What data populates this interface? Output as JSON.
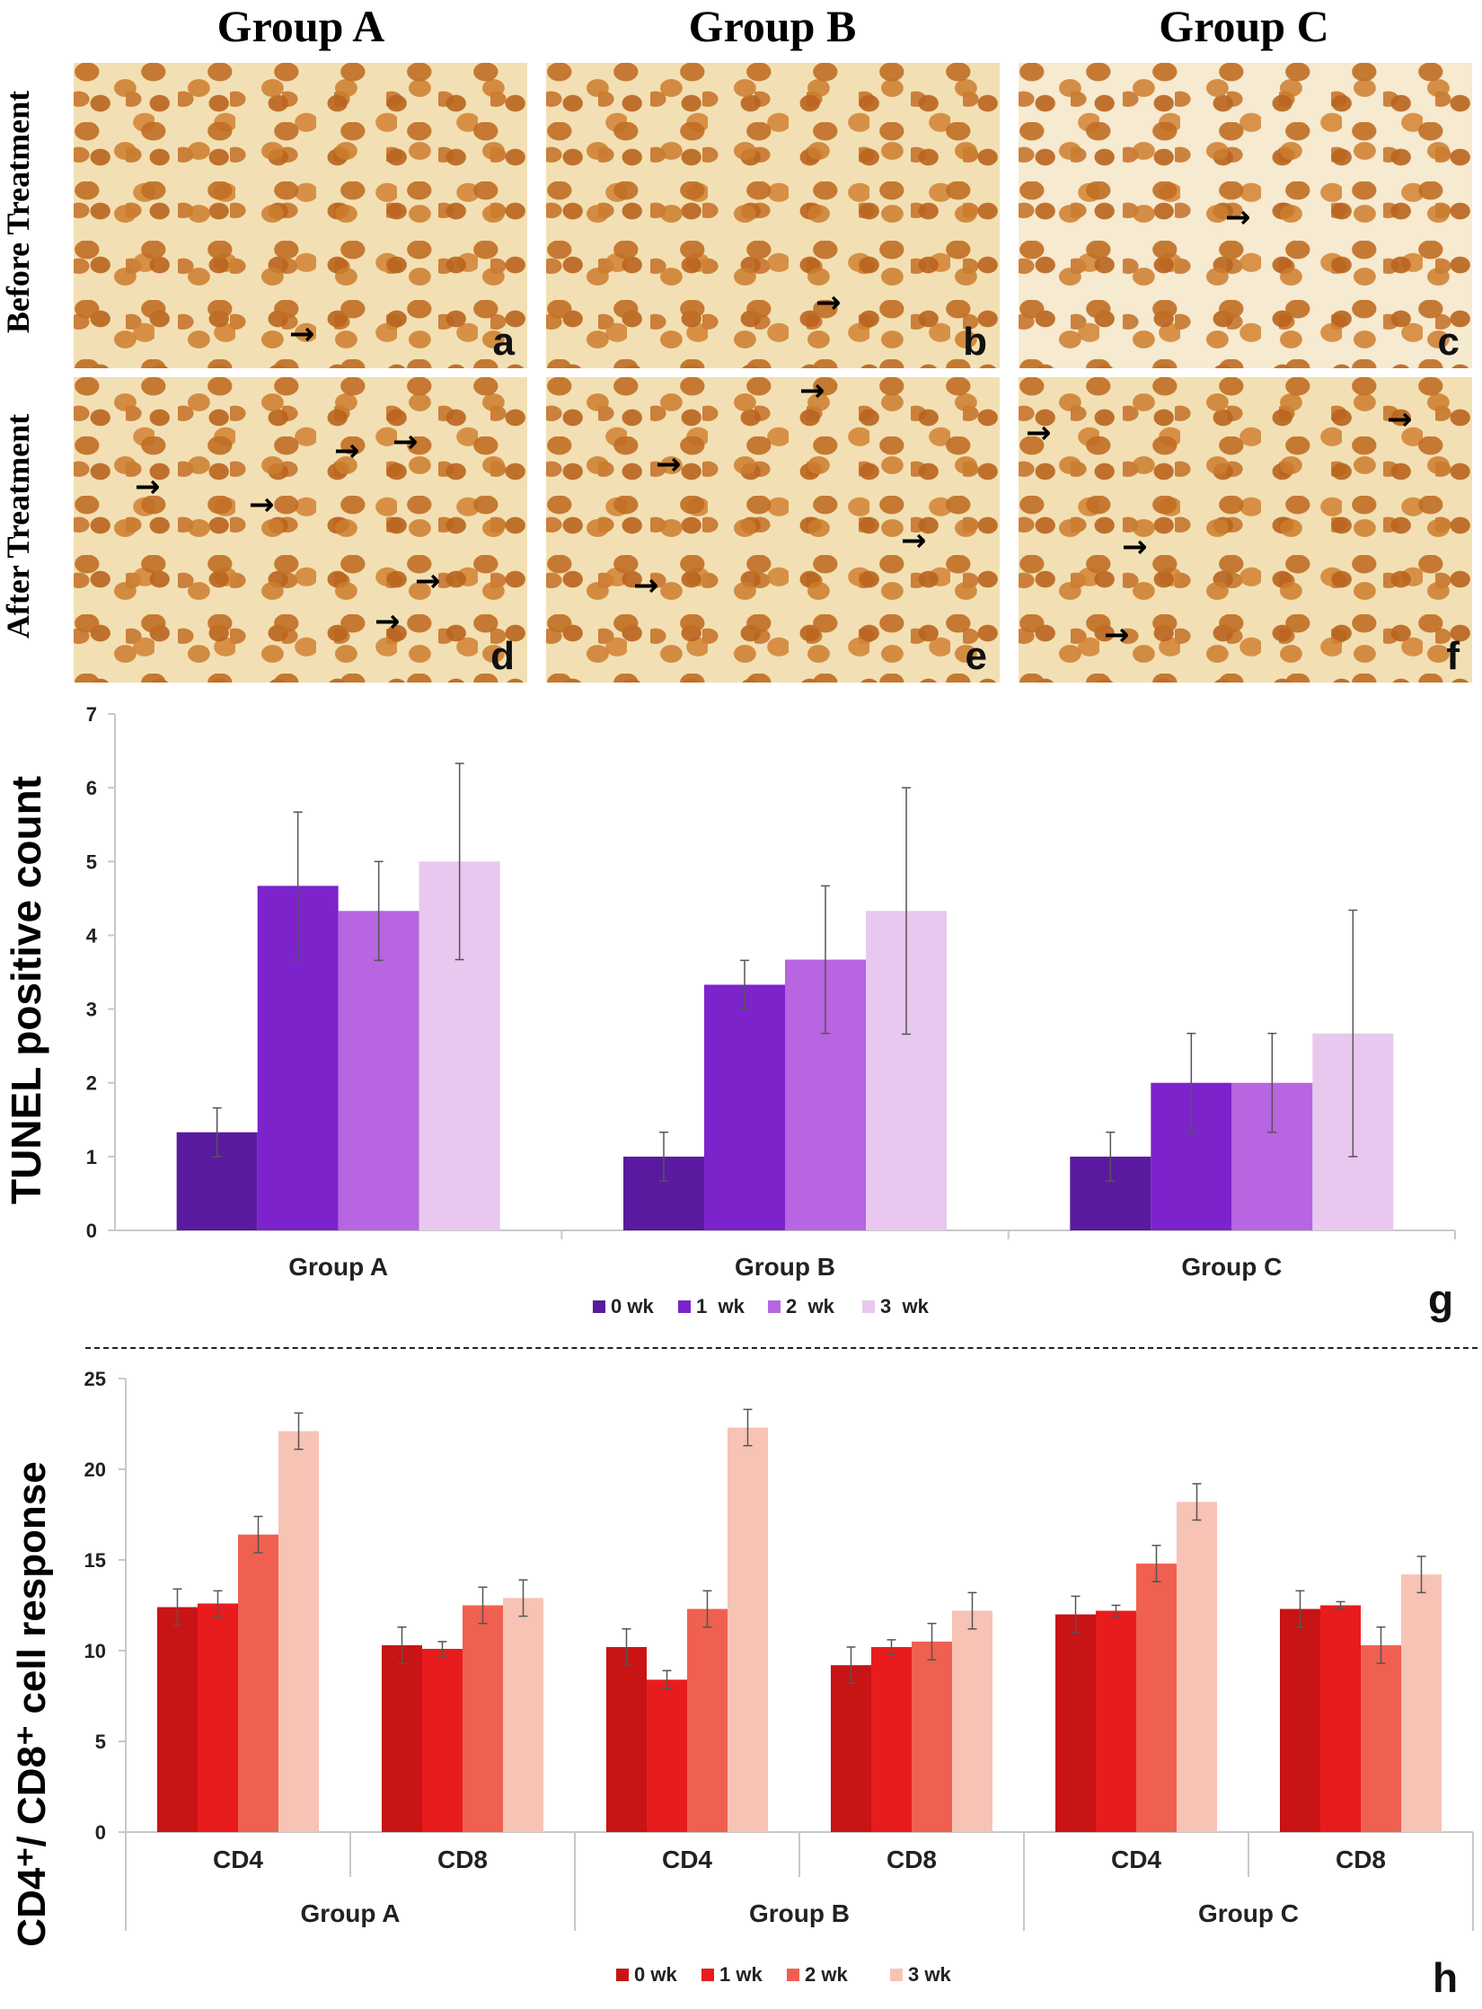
{
  "micrographs": {
    "columns": [
      "Group A",
      "Group B",
      "Group C"
    ],
    "rows": [
      "Before Treatment",
      "After Treatment"
    ],
    "panel_letters": [
      "a",
      "b",
      "c",
      "d",
      "e",
      "f"
    ]
  },
  "chart_data": [
    {
      "type": "bar",
      "panel_label": "g",
      "ylabel": "TUNEL positive count",
      "xlabel": "",
      "ylim": [
        0,
        7
      ],
      "yticks": [
        0,
        1,
        2,
        3,
        4,
        5,
        6,
        7
      ],
      "categories": [
        "Group A",
        "Group B",
        "Group C"
      ],
      "legend_position": "bottom",
      "series": [
        {
          "name": "0 wk",
          "color": "#5a1aa0",
          "values": [
            1.33,
            1.0,
            1.0
          ],
          "errors": [
            0.33,
            0.33,
            0.33
          ]
        },
        {
          "name": "1  wk",
          "color": "#7c23cc",
          "values": [
            4.67,
            3.33,
            2.0
          ],
          "errors": [
            1.0,
            0.33,
            0.67
          ]
        },
        {
          "name": "2  wk",
          "color": "#b765e0",
          "values": [
            4.33,
            3.67,
            2.0
          ],
          "errors": [
            0.67,
            1.0,
            0.67
          ]
        },
        {
          "name": "3  wk",
          "color": "#e8c8ee",
          "values": [
            5.0,
            4.33,
            2.67
          ],
          "errors": [
            1.33,
            1.67,
            1.67
          ]
        }
      ]
    },
    {
      "type": "bar",
      "panel_label": "h",
      "ylabel": "CD4⁺/ CD8⁺ cell response",
      "xlabel": "",
      "ylim": [
        0,
        25
      ],
      "yticks": [
        0,
        5,
        10,
        15,
        20,
        25
      ],
      "groups": [
        "Group A",
        "Group B",
        "Group C"
      ],
      "categories": [
        "CD4",
        "CD8",
        "CD4",
        "CD8",
        "CD4",
        "CD8"
      ],
      "legend_position": "bottom",
      "series": [
        {
          "name": "0 wk",
          "color": "#c81414",
          "values": [
            12.4,
            10.3,
            10.2,
            9.2,
            12.0,
            12.3
          ],
          "errors": [
            1.0,
            1.0,
            1.0,
            1.0,
            1.0,
            1.0
          ]
        },
        {
          "name": "1 wk",
          "color": "#e81c1c",
          "values": [
            12.6,
            10.1,
            8.4,
            10.2,
            12.2,
            12.5
          ],
          "errors": [
            0.7,
            0.4,
            0.5,
            0.4,
            0.3,
            0.2
          ]
        },
        {
          "name": "2 wk",
          "color": "#f06050",
          "values": [
            16.4,
            12.5,
            12.3,
            10.5,
            14.8,
            10.3
          ],
          "errors": [
            1.0,
            1.0,
            1.0,
            1.0,
            1.0,
            1.0
          ]
        },
        {
          "name": "3 wk",
          "color": "#f7c3b5",
          "values": [
            22.1,
            12.9,
            22.3,
            12.2,
            18.2,
            14.2
          ],
          "errors": [
            1.0,
            1.0,
            1.0,
            1.0,
            1.0,
            1.0
          ]
        }
      ]
    }
  ]
}
